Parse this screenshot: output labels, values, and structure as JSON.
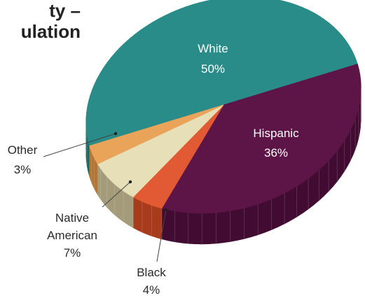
{
  "title_lines": [
    "ty –",
    "ulation"
  ],
  "chart_data": {
    "type": "pie",
    "title": "",
    "slices": [
      {
        "label": "White",
        "value": 50,
        "display": "50%",
        "color": "#2a8c88",
        "side": "#1c6663"
      },
      {
        "label": "Hispanic",
        "value": 36,
        "display": "36%",
        "color": "#5c1546",
        "side": "#420c32"
      },
      {
        "label": "Black",
        "value": 4,
        "display": "4%",
        "color": "#e25a33",
        "side": "#a83b1c"
      },
      {
        "label": "Native American",
        "value": 7,
        "display": "7%",
        "color": "#e6dfb7",
        "side": "#a39b7a"
      },
      {
        "label": "Other",
        "value": 3,
        "display": "3%",
        "color": "#eaa45a",
        "side": "#b07635"
      }
    ],
    "labels": {
      "white": {
        "name": "White",
        "pct": "50%"
      },
      "hispanic": {
        "name": "Hispanic",
        "pct": "36%"
      },
      "other": {
        "name": "Other",
        "pct": "3%"
      },
      "native": {
        "line1": "Native",
        "line2": "American",
        "pct": "7%"
      },
      "black": {
        "name": "Black",
        "pct": "4%"
      }
    }
  }
}
